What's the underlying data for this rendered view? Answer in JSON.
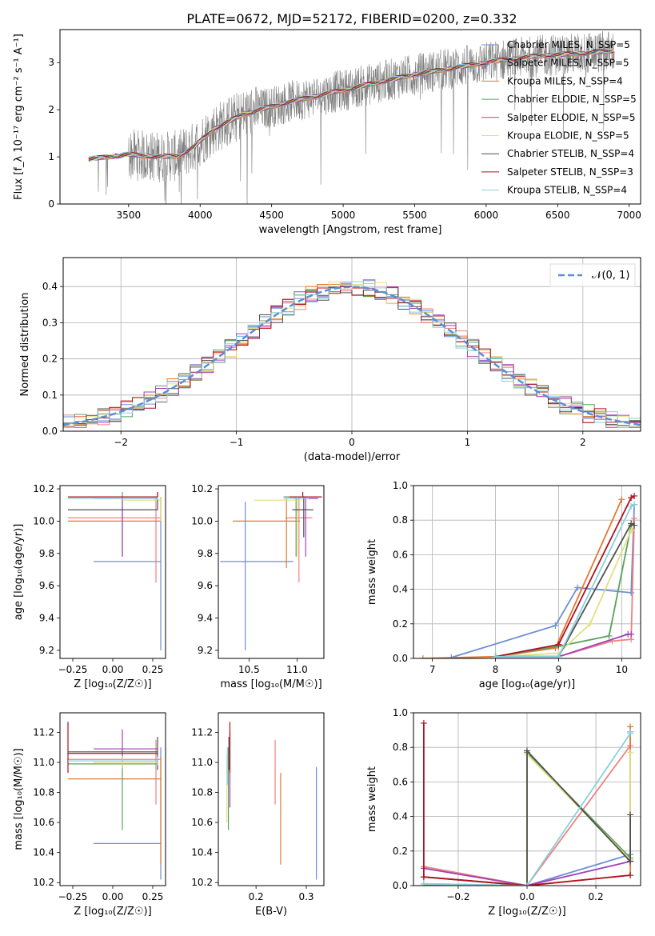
{
  "figure_title": "PLATE=0672, MJD=52172, FIBERID=0200, z=0.332",
  "legend_colors": [
    "#6b8fd6",
    "#f08080",
    "#e3782f",
    "#5aa05a",
    "#a040b8",
    "#e0e080",
    "#505050",
    "#b01020",
    "#88d0e0"
  ],
  "chart_data": [
    {
      "id": "spectrum",
      "type": "line",
      "xlabel": "wavelength [Angstrom, rest frame]",
      "ylabel": "Flux [f_λ 10⁻¹⁷ erg cm⁻² s⁻¹ A⁻¹]",
      "xlim": [
        3020,
        7080
      ],
      "ylim": [
        0,
        3.7
      ],
      "xticks": [
        3500,
        4000,
        4500,
        5000,
        5500,
        6000,
        6500,
        7000
      ],
      "yticks": [
        0,
        1,
        2,
        3
      ],
      "data": {
        "x_range": [
          3220,
          6900
        ],
        "data_color": "#808080",
        "continuum": [
          [
            3220,
            0.95
          ],
          [
            3500,
            1.05
          ],
          [
            3700,
            1.0
          ],
          [
            3850,
            1.02
          ],
          [
            3950,
            1.2
          ],
          [
            4100,
            1.6
          ],
          [
            4300,
            1.9
          ],
          [
            4600,
            2.15
          ],
          [
            4900,
            2.35
          ],
          [
            5200,
            2.55
          ],
          [
            5500,
            2.75
          ],
          [
            5800,
            2.9
          ],
          [
            6100,
            3.05
          ],
          [
            6400,
            3.15
          ],
          [
            6700,
            3.2
          ],
          [
            6900,
            3.25
          ]
        ]
      },
      "series": [
        {
          "name": "Chabrier MILES, N_SSP=5",
          "color": "#6b8fd6"
        },
        {
          "name": "Salpeter MILES, N_SSP=5",
          "color": "#f08080"
        },
        {
          "name": "Kroupa MILES, N_SSP=4",
          "color": "#e3782f"
        },
        {
          "name": "Chabrier ELODIE, N_SSP=5",
          "color": "#5aa05a"
        },
        {
          "name": "Salpeter ELODIE, N_SSP=5",
          "color": "#a040b8"
        },
        {
          "name": "Kroupa ELODIE, N_SSP=5",
          "color": "#e0e080"
        },
        {
          "name": "Chabrier STELIB, N_SSP=4",
          "color": "#505050"
        },
        {
          "name": "Salpeter STELIB, N_SSP=3",
          "color": "#b01020"
        },
        {
          "name": "Kroupa STELIB, N_SSP=4",
          "color": "#88d0e0"
        }
      ],
      "grid": false,
      "legend": "upper-right"
    },
    {
      "id": "residuals",
      "type": "line",
      "xlabel": "(data-model)/error",
      "ylabel": "Normed distribution",
      "xlim": [
        -2.5,
        2.5
      ],
      "ylim": [
        0,
        0.48
      ],
      "xticks": [
        -2,
        -1,
        0,
        1,
        2
      ],
      "yticks": [
        0.0,
        0.1,
        0.2,
        0.3,
        0.4
      ],
      "gaussian_label": "𝒩(0, 1)",
      "grid": true,
      "legend": "upper-right"
    },
    {
      "id": "age_vs_Z",
      "type": "scatter",
      "xlabel": "Z [log₁₀(Z/Z☉)]",
      "ylabel": "age [log₁₀(age/yr)]",
      "xlim": [
        -0.33,
        0.33
      ],
      "ylim": [
        9.15,
        10.22
      ],
      "xticks": [
        -0.25,
        0.0,
        0.25
      ],
      "yticks": [
        9.2,
        9.4,
        9.6,
        9.8,
        10.0,
        10.2
      ],
      "points": [
        {
          "color": "#6b8fd6",
          "x": 0.3,
          "xl": -0.12,
          "xh": 0.3,
          "y": 9.75,
          "yl": 9.2,
          "yh": 10.15
        },
        {
          "color": "#f08080",
          "x": 0.27,
          "xl": -0.28,
          "xh": 0.3,
          "y": 10.02,
          "yl": 9.62,
          "yh": 10.15
        },
        {
          "color": "#e3782f",
          "x": 0.3,
          "xl": -0.28,
          "xh": 0.3,
          "y": 10.0,
          "yl": 10.0,
          "yh": 10.15
        },
        {
          "color": "#5aa05a",
          "x": 0.06,
          "xl": -0.28,
          "xh": 0.28,
          "y": 10.15,
          "yl": 9.78,
          "yh": 10.18
        },
        {
          "color": "#a040b8",
          "x": 0.06,
          "xl": -0.12,
          "xh": 0.28,
          "y": 10.14,
          "yl": 9.78,
          "yh": 10.15
        },
        {
          "color": "#e0e080",
          "x": 0.3,
          "xl": 0.06,
          "xh": 0.3,
          "y": 10.13,
          "yl": 10.0,
          "yh": 10.15
        },
        {
          "color": "#505050",
          "x": 0.28,
          "xl": -0.28,
          "xh": 0.28,
          "y": 10.07,
          "yl": 10.07,
          "yh": 10.18
        },
        {
          "color": "#b01020",
          "x": 0.28,
          "xl": -0.28,
          "xh": 0.28,
          "y": 10.15,
          "yl": 10.15,
          "yh": 10.18
        },
        {
          "color": "#88d0e0",
          "x": 0.28,
          "xl": -0.28,
          "xh": 0.28,
          "y": 10.14,
          "yl": 10.13,
          "yh": 10.15
        }
      ]
    },
    {
      "id": "age_vs_mass",
      "type": "scatter",
      "xlabel": "mass [log₁₀(M/M☉)]",
      "ylabel": "",
      "xlim": [
        10.18,
        11.28
      ],
      "ylim": [
        9.15,
        10.22
      ],
      "xticks": [
        10.5,
        11.0
      ],
      "yticks": [
        9.2,
        9.4,
        9.6,
        9.8,
        10.0,
        10.2
      ],
      "points": [
        {
          "color": "#6b8fd6",
          "x": 10.46,
          "xl": 10.2,
          "xh": 10.96,
          "y": 9.75,
          "yl": 9.2,
          "yh": 10.12
        },
        {
          "color": "#f08080",
          "x": 11.02,
          "xl": 10.88,
          "xh": 11.16,
          "y": 10.02,
          "yl": 9.62,
          "yh": 10.15
        },
        {
          "color": "#e3782f",
          "x": 10.89,
          "xl": 10.33,
          "xh": 11.03,
          "y": 10.0,
          "yl": 9.71,
          "yh": 10.14
        },
        {
          "color": "#5aa05a",
          "x": 10.99,
          "xl": 10.86,
          "xh": 11.04,
          "y": 10.15,
          "yl": 9.78,
          "yh": 10.15
        },
        {
          "color": "#a040b8",
          "x": 11.09,
          "xl": 10.96,
          "xh": 11.22,
          "y": 10.14,
          "yl": 9.78,
          "yh": 10.15
        },
        {
          "color": "#e0e080",
          "x": 11.0,
          "xl": 10.55,
          "xh": 11.04,
          "y": 10.13,
          "yl": 9.78,
          "yh": 10.15
        },
        {
          "color": "#505050",
          "x": 11.07,
          "xl": 10.95,
          "xh": 11.17,
          "y": 10.07,
          "yl": 9.9,
          "yh": 10.15
        },
        {
          "color": "#b01020",
          "x": 11.06,
          "xl": 10.92,
          "xh": 11.26,
          "y": 10.15,
          "yl": 10.15,
          "yh": 10.18
        },
        {
          "color": "#88d0e0",
          "x": 11.0,
          "xl": 10.86,
          "xh": 11.12,
          "y": 10.14,
          "yl": 10.13,
          "yh": 10.15
        }
      ]
    },
    {
      "id": "weight_vs_age",
      "type": "line",
      "xlabel": "age [log₁₀(age/yr)]",
      "ylabel": "mass weight",
      "xlim": [
        6.7,
        10.3
      ],
      "ylim": [
        0,
        1.0
      ],
      "xticks": [
        7,
        8,
        9,
        10
      ],
      "yticks": [
        0.0,
        0.2,
        0.4,
        0.6,
        0.8,
        1.0
      ],
      "grid": true,
      "series": [
        {
          "color": "#6b8fd6",
          "x": [
            7.3,
            8.95,
            9.3,
            10.15,
            10.2
          ],
          "y": [
            0.005,
            0.19,
            0.41,
            0.38,
            0.89
          ]
        },
        {
          "color": "#f08080",
          "x": [
            8.0,
            9.0,
            9.85,
            10.15,
            10.2
          ],
          "y": [
            0.01,
            0.01,
            0.1,
            0.11,
            0.81
          ]
        },
        {
          "color": "#e3782f",
          "x": [
            6.85,
            8.0,
            8.95,
            10.0
          ],
          "y": [
            0.0,
            0.01,
            0.06,
            0.92
          ]
        },
        {
          "color": "#5aa05a",
          "x": [
            8.0,
            9.0,
            9.8,
            10.15
          ],
          "y": [
            0.01,
            0.07,
            0.13,
            0.77
          ]
        },
        {
          "color": "#a040b8",
          "x": [
            8.0,
            9.0,
            10.1,
            10.15
          ],
          "y": [
            0.01,
            0.01,
            0.14,
            0.14
          ]
        },
        {
          "color": "#e0e080",
          "x": [
            8.0,
            9.0,
            9.5,
            10.15,
            10.2
          ],
          "y": [
            0.01,
            0.03,
            0.2,
            0.74,
            0.77
          ]
        },
        {
          "color": "#505050",
          "x": [
            8.0,
            9.0,
            10.15,
            10.2
          ],
          "y": [
            0.01,
            0.01,
            0.78,
            0.77
          ]
        },
        {
          "color": "#b01020",
          "x": [
            8.0,
            9.0,
            10.15,
            10.2
          ],
          "y": [
            0.01,
            0.08,
            0.93,
            0.94
          ]
        },
        {
          "color": "#88d0e0",
          "x": [
            8.0,
            9.0,
            10.15,
            10.2
          ],
          "y": [
            0.01,
            0.01,
            0.88,
            0.89
          ]
        }
      ]
    },
    {
      "id": "mass_vs_Z",
      "type": "scatter",
      "xlabel": "Z [log₁₀(Z/Z☉)]",
      "ylabel": "mass [log₁₀(M/M☉)]",
      "xlim": [
        -0.33,
        0.33
      ],
      "ylim": [
        10.18,
        11.33
      ],
      "xticks": [
        -0.25,
        0.0,
        0.25
      ],
      "yticks": [
        10.2,
        10.4,
        10.6,
        10.8,
        11.0,
        11.2
      ],
      "points": [
        {
          "color": "#6b8fd6",
          "x": 0.3,
          "xl": -0.12,
          "xh": 0.3,
          "y": 10.46,
          "yl": 10.22,
          "yh": 11.1
        },
        {
          "color": "#f08080",
          "x": 0.27,
          "xl": -0.28,
          "xh": 0.3,
          "y": 11.02,
          "yl": 10.72,
          "yh": 11.15
        },
        {
          "color": "#e3782f",
          "x": 0.3,
          "xl": -0.28,
          "xh": 0.3,
          "y": 10.89,
          "yl": 10.32,
          "yh": 11.04
        },
        {
          "color": "#5aa05a",
          "x": 0.06,
          "xl": -0.28,
          "xh": 0.28,
          "y": 10.99,
          "yl": 10.55,
          "yh": 11.04
        },
        {
          "color": "#a040b8",
          "x": 0.06,
          "xl": -0.12,
          "xh": 0.28,
          "y": 11.09,
          "yl": 10.96,
          "yh": 11.22
        },
        {
          "color": "#e0e080",
          "x": 0.06,
          "xl": -0.12,
          "xh": 0.28,
          "y": 11.0,
          "yl": 10.96,
          "yh": 11.04
        },
        {
          "color": "#505050",
          "x": 0.28,
          "xl": -0.28,
          "xh": 0.28,
          "y": 11.07,
          "yl": 10.95,
          "yh": 11.17
        },
        {
          "color": "#b01020",
          "x": -0.28,
          "xl": -0.28,
          "xh": 0.28,
          "y": 11.06,
          "yl": 10.93,
          "yh": 11.27
        },
        {
          "color": "#88d0e0",
          "x": 0.28,
          "xl": -0.28,
          "xh": 0.28,
          "y": 11.01,
          "yl": 10.98,
          "yh": 11.04
        }
      ]
    },
    {
      "id": "mass_vs_EBV",
      "type": "scatter",
      "xlabel": "E(B-V)",
      "ylabel": "",
      "xlim": [
        0.125,
        0.335
      ],
      "ylim": [
        10.18,
        11.33
      ],
      "xticks": [
        0.2,
        0.3
      ],
      "yticks": [
        10.2,
        10.4,
        10.6,
        10.8,
        11.0,
        11.2
      ],
      "points": [
        {
          "color": "#6b8fd6",
          "x": 0.32,
          "yl": 10.22,
          "yh": 10.97
        },
        {
          "color": "#f08080",
          "x": 0.238,
          "yl": 10.72,
          "yh": 11.15
        },
        {
          "color": "#e3782f",
          "x": 0.249,
          "yl": 10.32,
          "yh": 10.93
        },
        {
          "color": "#5aa05a",
          "x": 0.145,
          "yl": 10.55,
          "yh": 11.1
        },
        {
          "color": "#a040b8",
          "x": 0.148,
          "yl": 10.7,
          "yh": 11.2
        },
        {
          "color": "#e0e080",
          "x": 0.142,
          "yl": 10.6,
          "yh": 11.05
        },
        {
          "color": "#505050",
          "x": 0.146,
          "yl": 10.95,
          "yh": 11.17
        },
        {
          "color": "#b01020",
          "x": 0.148,
          "yl": 10.93,
          "yh": 11.27
        },
        {
          "color": "#88d0e0",
          "x": 0.143,
          "yl": 10.85,
          "yh": 11.1
        }
      ]
    },
    {
      "id": "weight_vs_Z",
      "type": "line",
      "xlabel": "Z [log₁₀(Z/Z☉)]",
      "ylabel": "mass weight",
      "xlim": [
        -0.33,
        0.33
      ],
      "ylim": [
        0,
        1.0
      ],
      "xticks": [
        -0.2,
        0.0,
        0.2
      ],
      "yticks": [
        0.0,
        0.2,
        0.4,
        0.6,
        0.8,
        1.0
      ],
      "grid": true,
      "series": [
        {
          "color": "#6b8fd6",
          "x": [
            -0.3,
            0.0,
            0.3,
            0.3
          ],
          "y": [
            0.0,
            0.0,
            0.18,
            0.89
          ]
        },
        {
          "color": "#f08080",
          "x": [
            -0.3,
            0.0,
            0.3,
            0.3
          ],
          "y": [
            0.11,
            0.0,
            0.81,
            0.89
          ]
        },
        {
          "color": "#e3782f",
          "x": [
            -0.3,
            0.0,
            0.3,
            0.3
          ],
          "y": [
            0.0,
            0.0,
            0.06,
            0.92
          ]
        },
        {
          "color": "#5aa05a",
          "x": [
            -0.3,
            0.0,
            0.0,
            0.3,
            0.3
          ],
          "y": [
            0.01,
            0.0,
            0.77,
            0.16,
            0.15
          ]
        },
        {
          "color": "#a040b8",
          "x": [
            -0.3,
            0.0,
            0.3
          ],
          "y": [
            0.1,
            0.0,
            0.14
          ]
        },
        {
          "color": "#e0e080",
          "x": [
            -0.3,
            0.0,
            0.0,
            0.3,
            0.3
          ],
          "y": [
            0.01,
            0.0,
            0.76,
            0.15,
            0.77
          ]
        },
        {
          "color": "#505050",
          "x": [
            -0.3,
            0.0,
            0.0,
            0.3,
            0.3
          ],
          "y": [
            0.05,
            0.0,
            0.78,
            0.14,
            0.41
          ]
        },
        {
          "color": "#b01020",
          "x": [
            -0.3,
            -0.3,
            0.0,
            0.3
          ],
          "y": [
            0.94,
            0.05,
            0.0,
            0.06
          ]
        },
        {
          "color": "#88d0e0",
          "x": [
            -0.3,
            0.0,
            0.3,
            0.3
          ],
          "y": [
            0.01,
            0.0,
            0.88,
            0.89
          ]
        }
      ]
    }
  ]
}
